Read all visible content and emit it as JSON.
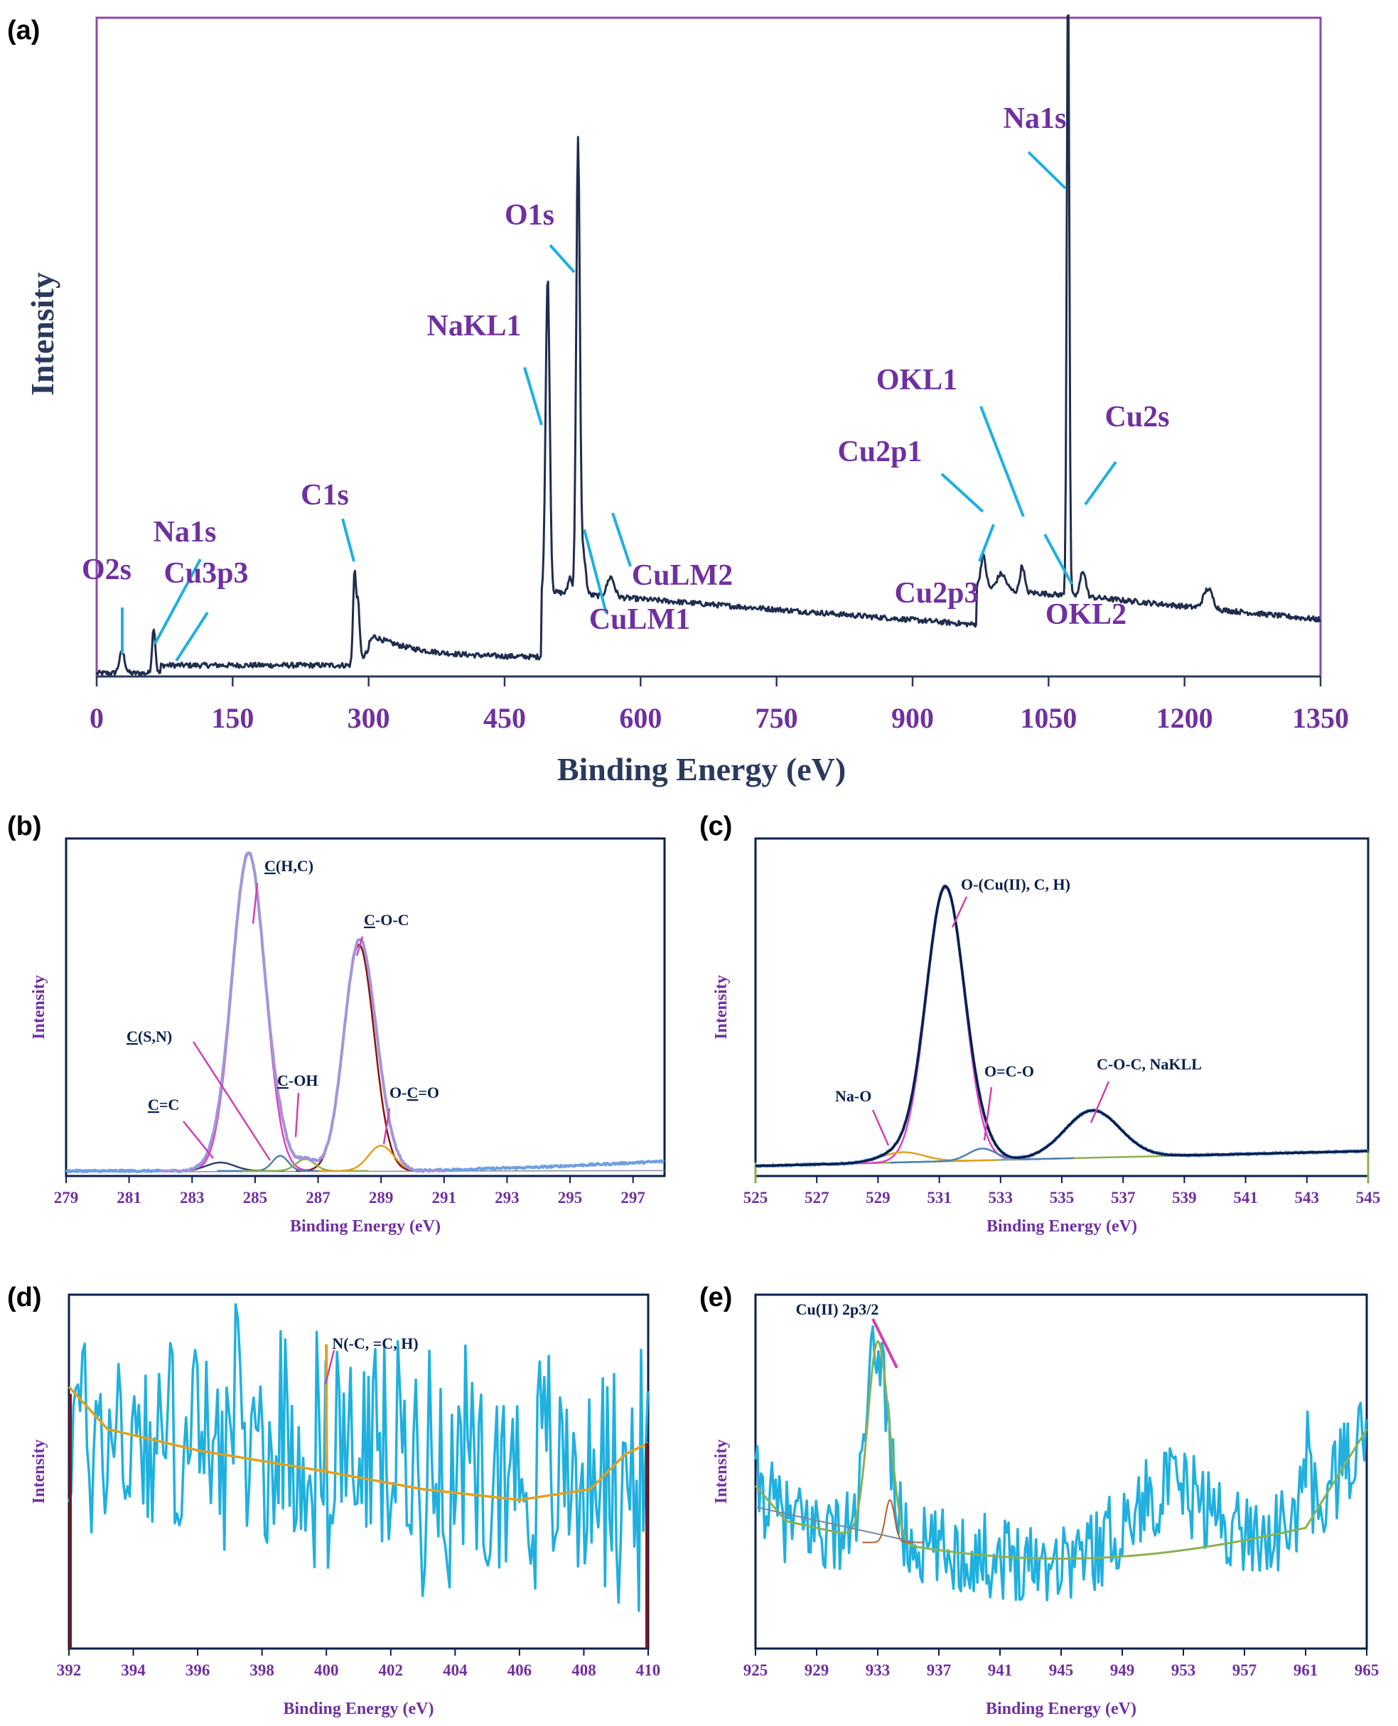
{
  "colors": {
    "purple": "#7030A0",
    "frame_purple": "#8B4BAE",
    "navy": "#1F2D4E",
    "axis_navy": "#2A3A5C",
    "cyan": "#1FB0E0",
    "pink": "#E040C8",
    "magenta": "#D040B0",
    "dark_navy": "#0A1F4C",
    "orange": "#E0A020",
    "olive": "#8BB050",
    "dark_red": "#8B1010",
    "lavender": "#B090D8",
    "light_blue": "#6FA0E0",
    "steel": "#5080B0",
    "brown": "#B06030",
    "red_strip": "#A02020"
  },
  "chart_data": [
    {
      "id": "a",
      "panel_label": "(a)",
      "type": "line",
      "title": "",
      "xlabel": "Binding Energy (eV)",
      "ylabel": "Intensity",
      "xlim": [
        0,
        1350
      ],
      "ylim": [
        0,
        100
      ],
      "xticks": [
        0,
        150,
        300,
        450,
        600,
        750,
        900,
        1050,
        1200,
        1350
      ],
      "xtick_labels": [
        "0",
        "150",
        "300",
        "450",
        "600",
        "750",
        "900",
        "1050",
        "1200",
        "1350"
      ],
      "annotations": [
        {
          "text": "O2s",
          "x": 28
        },
        {
          "text": "Na1s",
          "x": 63
        },
        {
          "text": "Cu3p3",
          "x": 78
        },
        {
          "text": "C1s",
          "x": 285
        },
        {
          "text": "NaKL1",
          "x": 497
        },
        {
          "text": "O1s",
          "x": 531
        },
        {
          "text": "CuLM1",
          "x": 540
        },
        {
          "text": "CuLM2",
          "x": 570
        },
        {
          "text": "Cu2p3",
          "x": 990
        },
        {
          "text": "Cu2p1",
          "x": 975
        },
        {
          "text": "OKL1",
          "x": 1020
        },
        {
          "text": "OKL2",
          "x": 1045
        },
        {
          "text": "Na1s",
          "x": 1072
        },
        {
          "text": "Cu2s",
          "x": 1088
        }
      ]
    },
    {
      "id": "b",
      "panel_label": "(b)",
      "type": "line",
      "xlabel": "Binding Energy (eV)",
      "ylabel": "Intensity",
      "xlim": [
        279,
        298
      ],
      "ylim": [
        0,
        100
      ],
      "xticks": [
        279,
        281,
        283,
        285,
        287,
        289,
        291,
        293,
        295,
        297
      ],
      "xtick_labels": [
        "279",
        "281",
        "283",
        "285",
        "287",
        "289",
        "291",
        "293",
        "295",
        "297"
      ],
      "components": [
        {
          "name": "C(H,C)",
          "center": 284.8,
          "height": 100
        },
        {
          "name": "C-O-C",
          "center": 288.3,
          "height": 72
        },
        {
          "name": "C(S,N)",
          "center": 285.8,
          "height": 5
        },
        {
          "name": "C=C",
          "center": 283.9,
          "height": 3
        },
        {
          "name": "C-OH",
          "center": 286.6,
          "height": 4
        },
        {
          "name": "O-C=O",
          "center": 289.0,
          "height": 9
        }
      ],
      "annotations": [
        {
          "text": "C(H,C)",
          "prefix": "C",
          "rest": "(H,C)"
        },
        {
          "text": "C-O-C",
          "prefix": "C",
          "rest": "-O-C"
        },
        {
          "text": "C(S,N)",
          "prefix": "C",
          "rest": "(S,N)"
        },
        {
          "text": "C=C",
          "prefix": "C",
          "rest": "=C"
        },
        {
          "text": "C-OH",
          "prefix": "C",
          "rest": "-OH"
        },
        {
          "text": "O-C=O",
          "pre": "O-",
          "prefix": "C",
          "rest": "=O"
        }
      ]
    },
    {
      "id": "c",
      "panel_label": "(c)",
      "type": "line",
      "xlabel": "Binding Energy (eV)",
      "ylabel": "Intensity",
      "xlim": [
        525,
        545
      ],
      "ylim": [
        0,
        100
      ],
      "xticks": [
        525,
        527,
        529,
        531,
        533,
        535,
        537,
        539,
        541,
        543,
        545
      ],
      "xtick_labels": [
        "525",
        "527",
        "529",
        "531",
        "533",
        "535",
        "537",
        "539",
        "541",
        "543",
        "545"
      ],
      "components": [
        {
          "name": "O-(Cu(II), C, H)",
          "center": 531.2,
          "height": 85
        },
        {
          "name": "Na-O",
          "center": 529.8,
          "height": 3
        },
        {
          "name": "O=C-O",
          "center": 532.4,
          "height": 4
        },
        {
          "name": "C-O-C, NaKLL",
          "center": 536.0,
          "height": 16
        }
      ],
      "annotations": [
        {
          "text": "O-(Cu(II), C, H)"
        },
        {
          "text": "Na-O"
        },
        {
          "text": "O=C-O"
        },
        {
          "text": "C-O-C, NaKLL"
        }
      ]
    },
    {
      "id": "d",
      "panel_label": "(d)",
      "type": "line",
      "xlabel": "Binding Energy (eV)",
      "ylabel": "Intensity",
      "xlim": [
        392,
        410
      ],
      "ylim": [
        0,
        100
      ],
      "xticks": [
        392,
        394,
        396,
        398,
        400,
        402,
        404,
        406,
        408,
        410
      ],
      "xtick_labels": [
        "392",
        "394",
        "396",
        "398",
        "400",
        "402",
        "404",
        "406",
        "408",
        "410"
      ],
      "annotations": [
        {
          "text": "N(-C, =C, H)",
          "x": 400.0
        }
      ]
    },
    {
      "id": "e",
      "panel_label": "(e)",
      "type": "line",
      "xlabel": "Binding Energy (eV)",
      "ylabel": "Intensity",
      "xlim": [
        925,
        965
      ],
      "ylim": [
        0,
        100
      ],
      "xticks": [
        925,
        929,
        933,
        937,
        941,
        945,
        949,
        953,
        957,
        961,
        965
      ],
      "xtick_labels": [
        "925",
        "929",
        "933",
        "937",
        "941",
        "945",
        "949",
        "953",
        "957",
        "961",
        "965"
      ],
      "annotations": [
        {
          "text": "Cu(II) 2p3/2",
          "x": 933
        }
      ]
    }
  ]
}
